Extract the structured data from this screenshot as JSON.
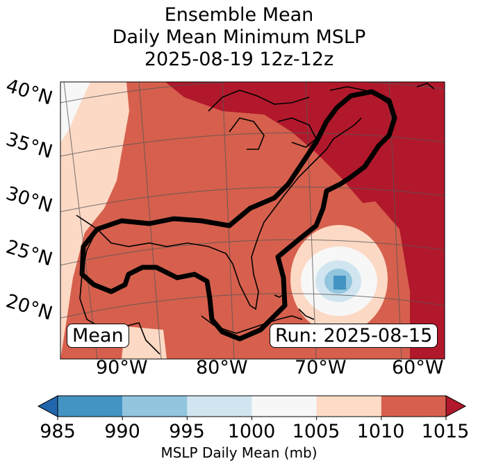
{
  "titles": {
    "line1": "Ensemble Mean",
    "line2": "Daily Mean Minimum MSLP",
    "line3": "2025-08-19 12z-12z"
  },
  "map": {
    "lat_labels": [
      "40°N",
      "35°N",
      "30°N",
      "25°N",
      "20°N"
    ],
    "lon_labels": [
      "90°W",
      "80°W",
      "70°W",
      "60°W"
    ],
    "mean_box": "Mean",
    "run_box": "Run: 2025-08-15",
    "colors": {
      "lt1015": "#fcd9c5",
      "lt1010": "#d6604d",
      "ge1010": "#b2182b",
      "near1000": "#f7f7f7",
      "lt1000": "#d1e5f0",
      "lt995": "#92c5de",
      "lt990": "#4393c3"
    }
  },
  "colorbar": {
    "ticks": [
      "985",
      "990",
      "995",
      "1000",
      "1005",
      "1010",
      "1015"
    ],
    "bins": [
      {
        "from": 985,
        "to": 990,
        "color": "#4393c3"
      },
      {
        "from": 990,
        "to": 995,
        "color": "#92c5de"
      },
      {
        "from": 995,
        "to": 1000,
        "color": "#d1e5f0"
      },
      {
        "from": 1000,
        "to": 1005,
        "color": "#f7f7f7"
      },
      {
        "from": 1005,
        "to": 1010,
        "color": "#fddbc7"
      },
      {
        "from": 1010,
        "to": 1015,
        "color": "#d6604d"
      }
    ],
    "under_color": "#2166ac",
    "over_color": "#b2182b",
    "label": "MSLP Daily Mean (mb)"
  }
}
